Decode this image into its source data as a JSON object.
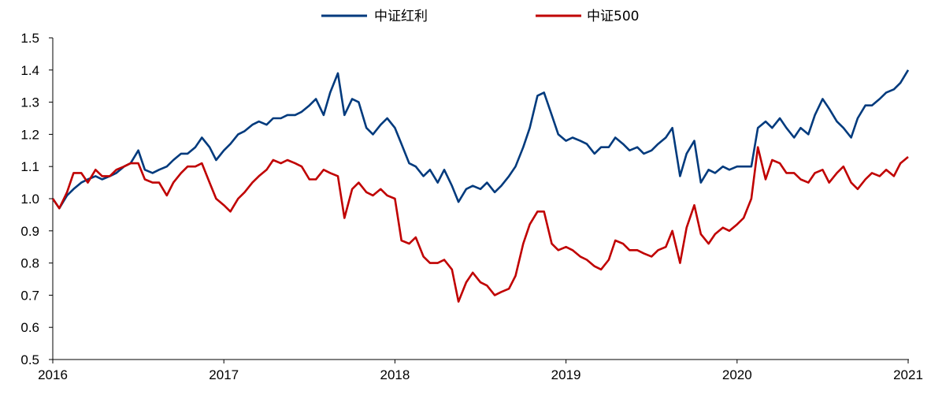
{
  "chart_data": {
    "type": "line",
    "title": "",
    "xlabel": "",
    "ylabel": "",
    "xlim": [
      2016,
      2021
    ],
    "ylim": [
      0.5,
      1.5
    ],
    "x_ticks": [
      "2016",
      "2017",
      "2018",
      "2019",
      "2020",
      "2021"
    ],
    "y_ticks": [
      "0.5",
      "0.6",
      "0.7",
      "0.8",
      "0.9",
      "1.0",
      "1.1",
      "1.2",
      "1.3",
      "1.4",
      "1.5"
    ],
    "grid": false,
    "legend_position": "top-center",
    "x": [
      "2016-01-01",
      "2016-01-15",
      "2016-02-01",
      "2016-02-15",
      "2016-03-01",
      "2016-03-15",
      "2016-04-01",
      "2016-04-15",
      "2016-05-01",
      "2016-05-15",
      "2016-06-01",
      "2016-06-15",
      "2016-07-01",
      "2016-07-15",
      "2016-08-01",
      "2016-08-15",
      "2016-09-01",
      "2016-09-15",
      "2016-10-01",
      "2016-10-15",
      "2016-11-01",
      "2016-11-15",
      "2016-12-01",
      "2016-12-15",
      "2017-01-01",
      "2017-01-15",
      "2017-02-01",
      "2017-02-15",
      "2017-03-01",
      "2017-03-15",
      "2017-04-01",
      "2017-04-15",
      "2017-05-01",
      "2017-05-15",
      "2017-06-01",
      "2017-06-15",
      "2017-07-01",
      "2017-07-15",
      "2017-08-01",
      "2017-08-15",
      "2017-09-01",
      "2017-09-15",
      "2017-10-01",
      "2017-10-15",
      "2017-11-01",
      "2017-11-15",
      "2017-12-01",
      "2017-12-15",
      "2018-01-01",
      "2018-01-15",
      "2018-02-01",
      "2018-02-15",
      "2018-03-01",
      "2018-03-15",
      "2018-04-01",
      "2018-04-15",
      "2018-05-01",
      "2018-05-15",
      "2018-06-01",
      "2018-06-15",
      "2018-07-01",
      "2018-07-15",
      "2018-08-01",
      "2018-08-15",
      "2018-09-01",
      "2018-09-15",
      "2018-10-01",
      "2018-10-15",
      "2018-11-01",
      "2018-11-15",
      "2018-12-01",
      "2018-12-15",
      "2019-01-01",
      "2019-01-15",
      "2019-02-01",
      "2019-02-15",
      "2019-03-01",
      "2019-03-15",
      "2019-04-01",
      "2019-04-15",
      "2019-05-01",
      "2019-05-15",
      "2019-06-01",
      "2019-06-15",
      "2019-07-01",
      "2019-07-15",
      "2019-08-01",
      "2019-08-15",
      "2019-09-01",
      "2019-09-15",
      "2019-10-01",
      "2019-10-15",
      "2019-11-01",
      "2019-11-15",
      "2019-12-01",
      "2019-12-15",
      "2020-01-01",
      "2020-01-15",
      "2020-02-01",
      "2020-02-15",
      "2020-03-01",
      "2020-03-15",
      "2020-04-01",
      "2020-04-15",
      "2020-05-01",
      "2020-05-15",
      "2020-06-01",
      "2020-06-15",
      "2020-07-01",
      "2020-07-15",
      "2020-08-01",
      "2020-08-15",
      "2020-09-01",
      "2020-09-15",
      "2020-10-01",
      "2020-10-15",
      "2020-11-01",
      "2020-11-15",
      "2020-12-01",
      "2020-12-15",
      "2021-01-01"
    ],
    "series": [
      {
        "name": "中证红利",
        "color": "#003A7D",
        "values": [
          1.0,
          0.97,
          1.01,
          1.03,
          1.05,
          1.06,
          1.07,
          1.06,
          1.07,
          1.08,
          1.1,
          1.11,
          1.15,
          1.09,
          1.08,
          1.09,
          1.1,
          1.12,
          1.14,
          1.14,
          1.16,
          1.19,
          1.16,
          1.12,
          1.15,
          1.17,
          1.2,
          1.21,
          1.23,
          1.24,
          1.23,
          1.25,
          1.25,
          1.26,
          1.26,
          1.27,
          1.29,
          1.31,
          1.26,
          1.33,
          1.39,
          1.26,
          1.31,
          1.3,
          1.22,
          1.2,
          1.23,
          1.25,
          1.22,
          1.17,
          1.11,
          1.1,
          1.07,
          1.09,
          1.05,
          1.09,
          1.04,
          0.99,
          1.03,
          1.04,
          1.03,
          1.05,
          1.02,
          1.04,
          1.07,
          1.1,
          1.16,
          1.22,
          1.32,
          1.33,
          1.26,
          1.2,
          1.18,
          1.19,
          1.18,
          1.17,
          1.14,
          1.16,
          1.16,
          1.19,
          1.17,
          1.15,
          1.16,
          1.14,
          1.15,
          1.17,
          1.19,
          1.22,
          1.07,
          1.14,
          1.18,
          1.05,
          1.09,
          1.08,
          1.1,
          1.09,
          1.1,
          1.1,
          1.1,
          1.22,
          1.24,
          1.22,
          1.25,
          1.22,
          1.19,
          1.22,
          1.2,
          1.26,
          1.31,
          1.28,
          1.24,
          1.22,
          1.19,
          1.25,
          1.29,
          1.29,
          1.31,
          1.33,
          1.34,
          1.36,
          1.4
        ]
      },
      {
        "name": "中证500",
        "color": "#C00000",
        "values": [
          1.0,
          0.97,
          1.02,
          1.08,
          1.08,
          1.05,
          1.09,
          1.07,
          1.07,
          1.09,
          1.1,
          1.11,
          1.11,
          1.06,
          1.05,
          1.05,
          1.01,
          1.05,
          1.08,
          1.1,
          1.1,
          1.11,
          1.05,
          1.0,
          0.98,
          0.96,
          1.0,
          1.02,
          1.05,
          1.07,
          1.09,
          1.12,
          1.11,
          1.12,
          1.11,
          1.1,
          1.06,
          1.06,
          1.09,
          1.08,
          1.07,
          0.94,
          1.03,
          1.05,
          1.02,
          1.01,
          1.03,
          1.01,
          1.0,
          0.87,
          0.86,
          0.88,
          0.82,
          0.8,
          0.8,
          0.81,
          0.78,
          0.68,
          0.74,
          0.77,
          0.74,
          0.73,
          0.7,
          0.71,
          0.72,
          0.76,
          0.86,
          0.92,
          0.96,
          0.96,
          0.86,
          0.84,
          0.85,
          0.84,
          0.82,
          0.81,
          0.79,
          0.78,
          0.81,
          0.87,
          0.86,
          0.84,
          0.84,
          0.83,
          0.82,
          0.84,
          0.85,
          0.9,
          0.8,
          0.91,
          0.98,
          0.89,
          0.86,
          0.89,
          0.91,
          0.9,
          0.92,
          0.94,
          1.0,
          1.16,
          1.06,
          1.12,
          1.11,
          1.08,
          1.08,
          1.06,
          1.05,
          1.08,
          1.09,
          1.05,
          1.08,
          1.1,
          1.05,
          1.03,
          1.06,
          1.08,
          1.07,
          1.09,
          1.07,
          1.11,
          1.13
        ]
      }
    ]
  }
}
